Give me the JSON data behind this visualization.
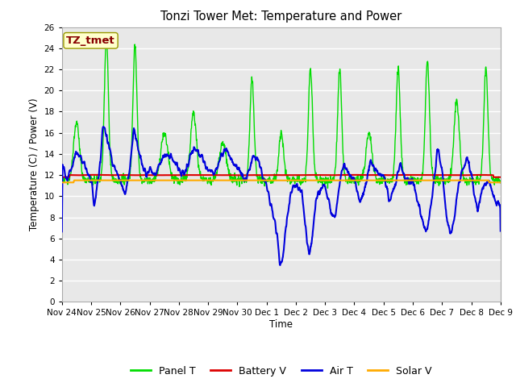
{
  "title": "Tonzi Tower Met: Temperature and Power",
  "xlabel": "Time",
  "ylabel": "Temperature (C) / Power (V)",
  "ylim": [
    0,
    26
  ],
  "yticks": [
    0,
    2,
    4,
    6,
    8,
    10,
    12,
    14,
    16,
    18,
    20,
    22,
    24,
    26
  ],
  "xtick_labels": [
    "Nov 24",
    "Nov 25",
    "Nov 26",
    "Nov 27",
    "Nov 28",
    "Nov 29",
    "Nov 30",
    "Dec 1",
    "Dec 2",
    "Dec 3",
    "Dec 4",
    "Dec 5",
    "Dec 6",
    "Dec 7",
    "Dec 8",
    "Dec 9"
  ],
  "annotation_text": "TZ_tmet",
  "annotation_box_color": "#ffffcc",
  "annotation_text_color": "#880000",
  "bg_color": "#ffffff",
  "plot_bg_color": "#e8e8e8",
  "grid_color": "#ffffff",
  "colors": {
    "Panel T": "#00dd00",
    "Battery V": "#dd0000",
    "Air T": "#0000dd",
    "Solar V": "#ffaa00"
  },
  "linewidths": {
    "Panel T": 1.0,
    "Battery V": 1.5,
    "Air T": 1.5,
    "Solar V": 1.5
  }
}
